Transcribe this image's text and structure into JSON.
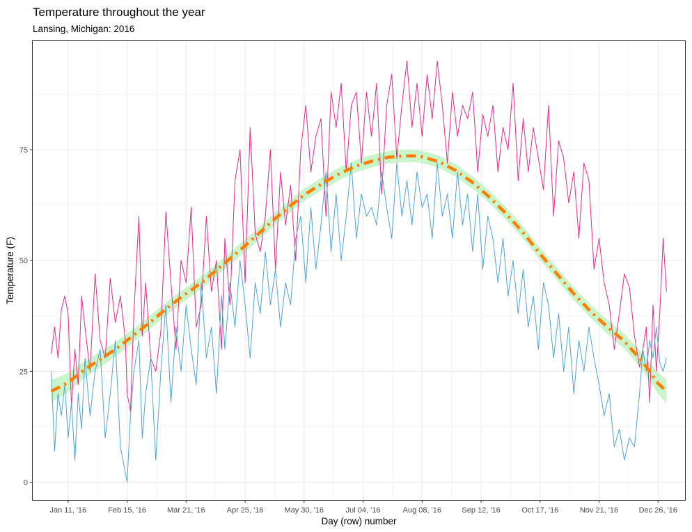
{
  "chart_data": {
    "type": "line",
    "title": "Temperature throughout the year",
    "subtitle": "Lansing, Michigan: 2016",
    "xlabel": "Day (row) number",
    "ylabel": "Temperature (F)",
    "xlim": [
      -10,
      377
    ],
    "ylim": [
      -4,
      99.5
    ],
    "grid": true,
    "x_ticks": [
      {
        "day": 11,
        "label": "Jan 11, '16"
      },
      {
        "day": 46,
        "label": "Feb 15, '16"
      },
      {
        "day": 81,
        "label": "Mar 21, '16"
      },
      {
        "day": 116,
        "label": "Apr 25, '16"
      },
      {
        "day": 151,
        "label": "May 30, '16"
      },
      {
        "day": 186,
        "label": "Jul 04, '16"
      },
      {
        "day": 221,
        "label": "Aug 08, '16"
      },
      {
        "day": 256,
        "label": "Sep 12, '16"
      },
      {
        "day": 291,
        "label": "Oct 17, '16"
      },
      {
        "day": 326,
        "label": "Nov 21, '16"
      },
      {
        "day": 361,
        "label": "Dec 26, '16"
      }
    ],
    "y_ticks": [
      {
        "value": 0,
        "label": "0"
      },
      {
        "value": 25,
        "label": "25"
      },
      {
        "value": 50,
        "label": "50"
      },
      {
        "value": 75,
        "label": "75"
      }
    ],
    "series": [
      {
        "role": "max-temperature",
        "color": "#e7298a",
        "x": [
          1,
          3,
          5,
          7,
          9,
          11,
          13,
          15,
          17,
          19,
          21,
          24,
          27,
          30,
          33,
          36,
          39,
          42,
          45,
          46,
          48,
          50,
          53,
          55,
          57,
          60,
          63,
          66,
          69,
          72,
          75,
          78,
          81,
          84,
          87,
          90,
          93,
          96,
          99,
          102,
          104,
          107,
          110,
          113,
          116,
          119,
          122,
          125,
          128,
          131,
          134,
          137,
          140,
          143,
          146,
          149,
          152,
          155,
          158,
          161,
          164,
          167,
          170,
          173,
          176,
          179,
          182,
          185,
          188,
          191,
          194,
          197,
          200,
          203,
          206,
          209,
          212,
          215,
          218,
          221,
          224,
          227,
          230,
          233,
          236,
          239,
          242,
          245,
          248,
          251,
          254,
          257,
          260,
          263,
          266,
          269,
          272,
          275,
          278,
          281,
          284,
          287,
          290,
          293,
          296,
          299,
          302,
          305,
          308,
          311,
          314,
          317,
          320,
          323,
          326,
          329,
          332,
          335,
          338,
          341,
          344,
          347,
          350,
          352,
          354,
          356,
          358,
          360,
          362,
          364,
          366
        ],
        "y": [
          29,
          35,
          28,
          39,
          42,
          38,
          17,
          30,
          22,
          42,
          35,
          25,
          47,
          32,
          28,
          46,
          36,
          42,
          32,
          20,
          16,
          38,
          60,
          33,
          45,
          28,
          25,
          34,
          61,
          45,
          30,
          50,
          45,
          62,
          35,
          40,
          60,
          43,
          50,
          30,
          55,
          40,
          68,
          75,
          45,
          80,
          56,
          52,
          60,
          75,
          48,
          70,
          58,
          67,
          50,
          75,
          85,
          70,
          78,
          82,
          60,
          88,
          80,
          90,
          70,
          85,
          88,
          72,
          88,
          78,
          90,
          65,
          85,
          92,
          73,
          85,
          95,
          80,
          90,
          78,
          92,
          82,
          95,
          85,
          72,
          88,
          78,
          85,
          82,
          88,
          70,
          83,
          78,
          85,
          70,
          80,
          75,
          90,
          68,
          82,
          70,
          80,
          73,
          66,
          85,
          60,
          77,
          73,
          63,
          70,
          55,
          72,
          68,
          48,
          55,
          45,
          40,
          30,
          38,
          47,
          44,
          33,
          26,
          30,
          35,
          18,
          40,
          25,
          38,
          55,
          43
        ]
      },
      {
        "role": "min-temperature",
        "color": "#4ea3d4",
        "x": [
          1,
          3,
          5,
          7,
          9,
          11,
          13,
          15,
          17,
          19,
          21,
          24,
          27,
          30,
          33,
          36,
          39,
          42,
          45,
          46,
          48,
          50,
          53,
          55,
          57,
          60,
          63,
          66,
          69,
          72,
          75,
          78,
          81,
          84,
          87,
          90,
          93,
          96,
          99,
          102,
          104,
          107,
          110,
          113,
          116,
          119,
          122,
          125,
          128,
          131,
          134,
          137,
          140,
          143,
          146,
          149,
          152,
          155,
          158,
          161,
          164,
          167,
          170,
          173,
          176,
          179,
          182,
          185,
          188,
          191,
          194,
          197,
          200,
          203,
          206,
          209,
          212,
          215,
          218,
          221,
          224,
          227,
          230,
          233,
          236,
          239,
          242,
          245,
          248,
          251,
          254,
          257,
          260,
          263,
          266,
          269,
          272,
          275,
          278,
          281,
          284,
          287,
          290,
          293,
          296,
          299,
          302,
          305,
          308,
          311,
          314,
          317,
          320,
          323,
          326,
          329,
          332,
          335,
          338,
          341,
          344,
          347,
          350,
          352,
          354,
          356,
          358,
          360,
          362,
          364,
          366
        ],
        "y": [
          25,
          7,
          20,
          15,
          22,
          10,
          18,
          5,
          20,
          12,
          28,
          15,
          25,
          30,
          10,
          20,
          32,
          8,
          2,
          0,
          15,
          25,
          32,
          10,
          20,
          28,
          5,
          25,
          40,
          18,
          35,
          25,
          40,
          30,
          22,
          45,
          28,
          35,
          20,
          42,
          30,
          45,
          35,
          50,
          40,
          28,
          45,
          38,
          52,
          40,
          48,
          35,
          45,
          40,
          55,
          60,
          45,
          62,
          48,
          58,
          70,
          52,
          65,
          50,
          60,
          72,
          55,
          65,
          60,
          62,
          58,
          70,
          62,
          55,
          72,
          60,
          68,
          58,
          70,
          62,
          65,
          55,
          72,
          60,
          65,
          55,
          70,
          58,
          65,
          52,
          65,
          48,
          60,
          55,
          45,
          55,
          42,
          50,
          38,
          48,
          35,
          42,
          30,
          45,
          40,
          28,
          38,
          25,
          35,
          20,
          32,
          25,
          35,
          28,
          22,
          15,
          20,
          8,
          12,
          5,
          10,
          8,
          20,
          30,
          25,
          32,
          28,
          35,
          27,
          25,
          28
        ]
      }
    ],
    "trend": {
      "role": "smoothed-trend-line",
      "color": "#ff7f00",
      "band_color": "#b8f0b8",
      "x": [
        1,
        11,
        21,
        31,
        41,
        51,
        61,
        71,
        81,
        91,
        101,
        111,
        121,
        131,
        141,
        151,
        161,
        171,
        181,
        191,
        201,
        211,
        216,
        221,
        231,
        241,
        251,
        261,
        271,
        281,
        291,
        301,
        311,
        321,
        331,
        341,
        351,
        356,
        361,
        366
      ],
      "y": [
        20.5,
        22.5,
        25.5,
        27.9,
        30.5,
        33.5,
        36.5,
        39.7,
        42.5,
        45.3,
        48.5,
        51.7,
        55,
        58.5,
        61.8,
        64.8,
        67.2,
        69.4,
        71.2,
        72.4,
        73.3,
        73.6,
        73.6,
        73.4,
        72.3,
        70.3,
        67.6,
        64.3,
        60.5,
        56.3,
        51.5,
        47,
        42.5,
        38.5,
        35,
        31.8,
        27.5,
        25,
        22.3,
        20.5
      ],
      "band_halfwidth": [
        2.5,
        2.2,
        1.9,
        1.7,
        1.6,
        1.5,
        1.5,
        1.5,
        1.4,
        1.4,
        1.4,
        1.4,
        1.4,
        1.4,
        1.4,
        1.4,
        1.4,
        1.4,
        1.4,
        1.4,
        1.4,
        1.4,
        1.4,
        1.4,
        1.4,
        1.4,
        1.4,
        1.4,
        1.4,
        1.4,
        1.4,
        1.4,
        1.4,
        1.5,
        1.6,
        1.7,
        1.9,
        2.1,
        2.4,
        2.7
      ]
    }
  }
}
